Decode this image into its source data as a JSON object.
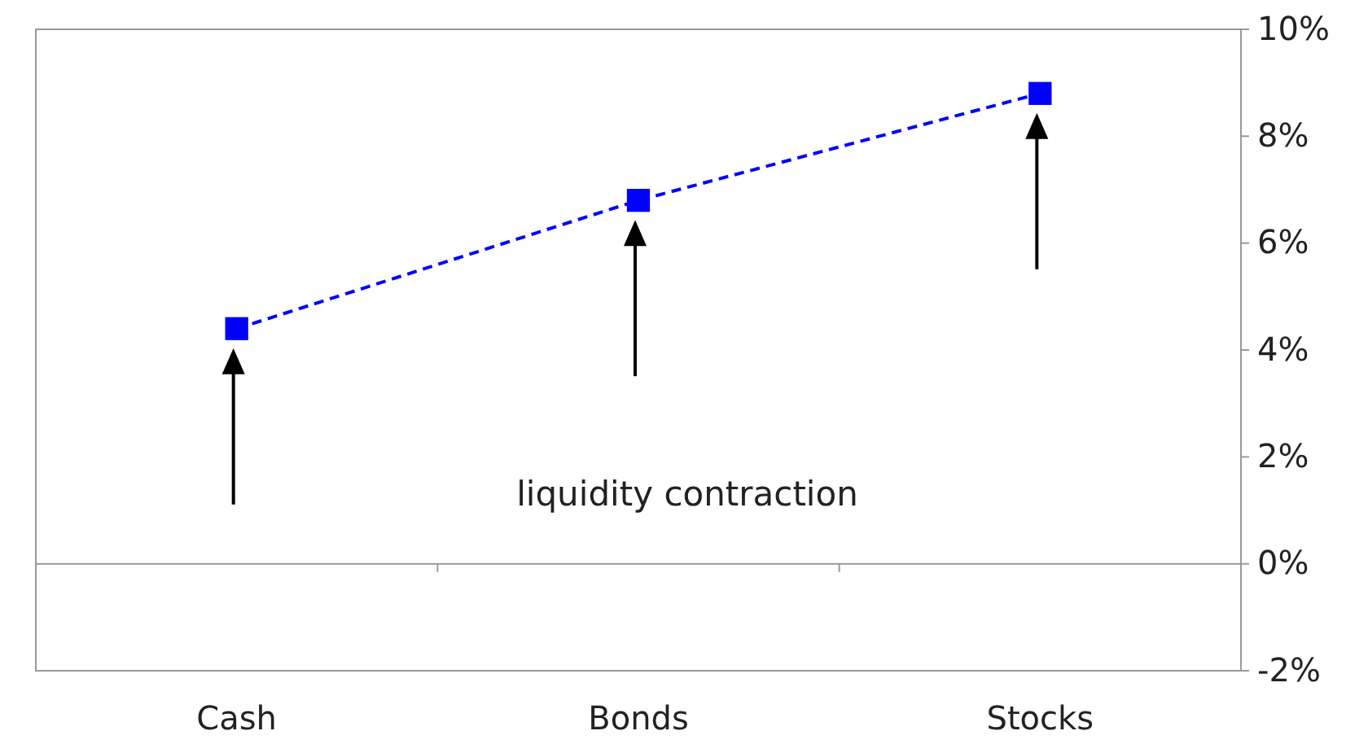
{
  "chart_data": {
    "type": "line",
    "categories": [
      "Cash",
      "Bonds",
      "Stocks"
    ],
    "series": [
      {
        "color": "#0000ff",
        "values": [
          4.4,
          6.8,
          8.8
        ]
      }
    ],
    "ylim": [
      -2,
      10
    ],
    "yticks": [
      {
        "value": -2,
        "label": "-2%"
      },
      {
        "value": 0,
        "label": "0%"
      },
      {
        "value": 2,
        "label": "2%"
      },
      {
        "value": 4,
        "label": "4%"
      },
      {
        "value": 6,
        "label": "6%"
      },
      {
        "value": 8,
        "label": "8%"
      },
      {
        "value": 10,
        "label": "10%"
      }
    ],
    "marker": "square",
    "line_style": "dashed",
    "annotations": [
      "liquidity contraction"
    ]
  }
}
